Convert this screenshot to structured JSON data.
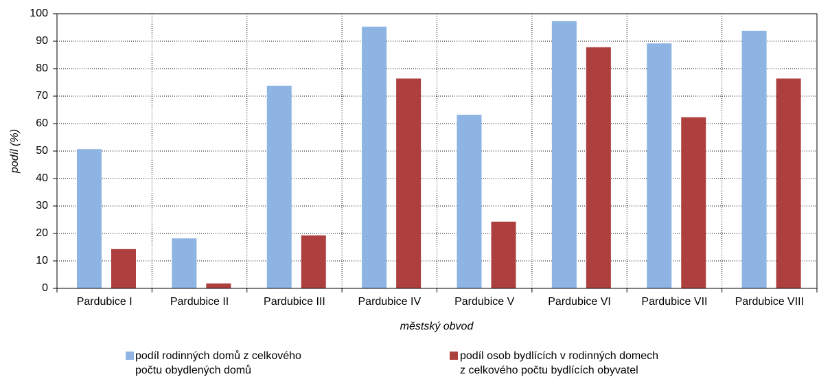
{
  "chart_data": {
    "type": "bar",
    "categories": [
      "Pardubice I",
      "Pardubice II",
      "Pardubice III",
      "Pardubice IV",
      "Pardubice V",
      "Pardubice VI",
      "Pardubice VII",
      "Pardubice VIII"
    ],
    "series": [
      {
        "name": "podíl rodinných domů z celkového\npočtu obydlených domů",
        "color": "#8eb4e3",
        "values": [
          50.7,
          18.2,
          73.8,
          95.3,
          63.2,
          97.3,
          89.2,
          93.8
        ]
      },
      {
        "name": "podíl osob bydlících v rodinných domech\nz celkového počtu bydlících obyvatel",
        "color": "#ad3f3f",
        "values": [
          14.3,
          1.8,
          19.3,
          76.4,
          24.3,
          87.8,
          62.3,
          76.4
        ]
      }
    ],
    "y_label": "podíl (%)",
    "x_label": "městský obvod",
    "ylim": [
      0,
      100
    ],
    "yticks": [
      0,
      10,
      20,
      30,
      40,
      50,
      60,
      70,
      80,
      90,
      100
    ],
    "grid": true,
    "legend": "bottom"
  }
}
